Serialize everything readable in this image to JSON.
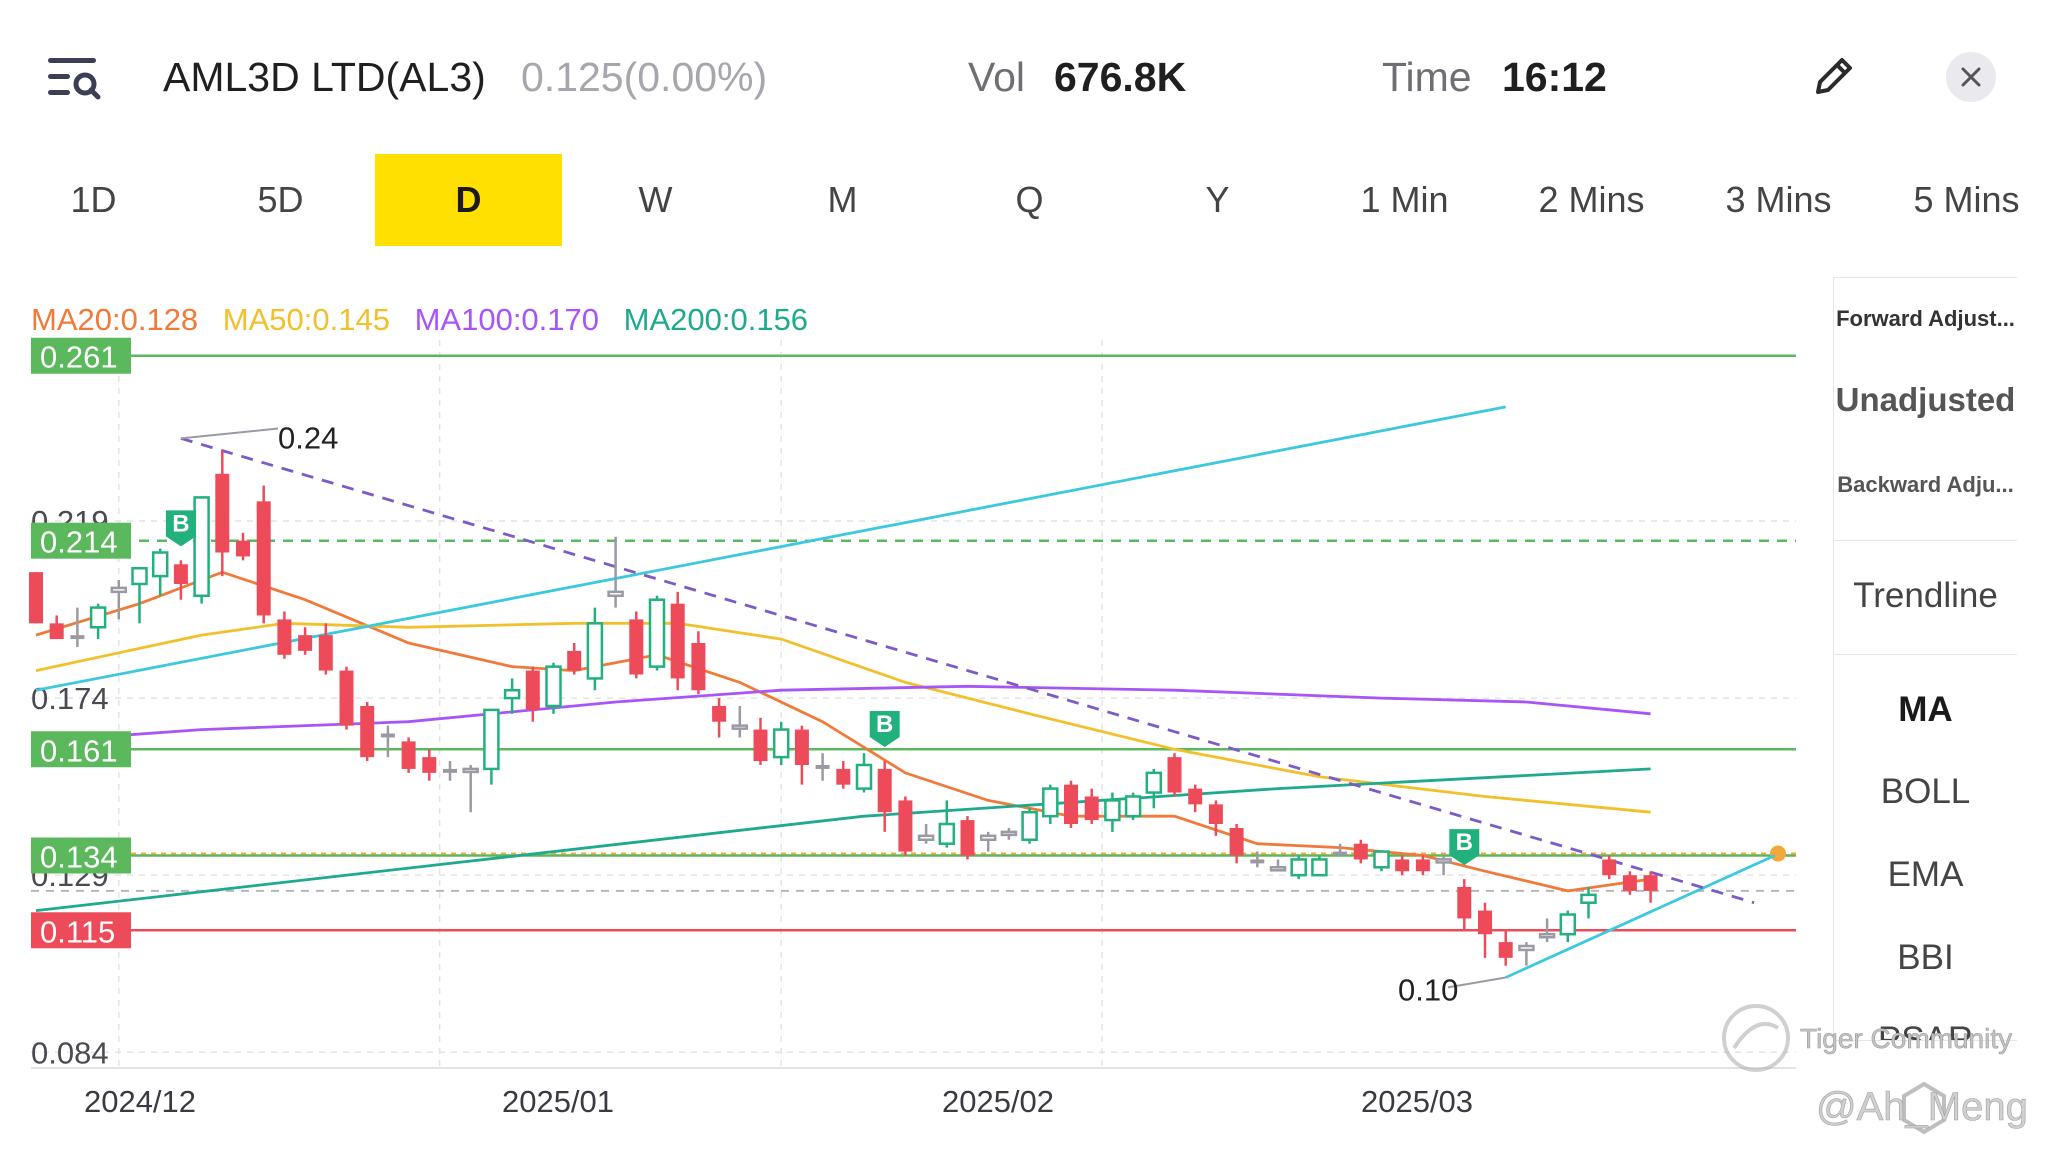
{
  "header": {
    "title": "AML3D LTD(AL3)",
    "price": "0.125(0.00%)",
    "vol_label": "Vol",
    "vol_value": "676.8K",
    "time_label": "Time",
    "time_value": "16:12"
  },
  "tabs": [
    "1D",
    "5D",
    "D",
    "W",
    "M",
    "Q",
    "Y",
    "1 Min",
    "2 Mins",
    "3 Mins",
    "5 Mins"
  ],
  "active_tab": "D",
  "ma_legend": {
    "ma20": "MA20:0.128",
    "ma50": "MA50:0.145",
    "ma100": "MA100:0.170",
    "ma200": "MA200:0.156"
  },
  "side_panel": {
    "forward": "Forward Adjust...",
    "unadjusted": "Unadjusted",
    "backward": "Backward Adju...",
    "trendline": "Trendline",
    "indicators": [
      "MA",
      "BOLL",
      "EMA",
      "BBI",
      "PSAR"
    ]
  },
  "watermark": {
    "community": "Tiger Community",
    "handle": "@Ah_Meng"
  },
  "colors": {
    "accent_tab": "#ffe000",
    "up_candle": "#22b07d",
    "down_candle": "#ee4b5a",
    "ma20": "#f07a3a",
    "ma50": "#f2c02c",
    "ma100": "#a855f7",
    "ma200": "#1fa98e",
    "support_green": "#5cb85c",
    "support_red": "#ee4b5a",
    "trendline_cyan": "#3cc8dd",
    "trendline_purple": "#7d5bc7"
  },
  "chart_data": {
    "type": "candlestick",
    "ylim": [
      0.08,
      0.265
    ],
    "y_labels": [
      "0.261",
      "0.219",
      "0.174",
      "0.129",
      "0.084"
    ],
    "x_labels": [
      "2024/12",
      "2025/01",
      "2025/02",
      "2025/03"
    ],
    "level_lines": [
      {
        "label": "0.261",
        "value": 0.261,
        "color": "#5cb85c",
        "style": "solid"
      },
      {
        "label": "0.214",
        "value": 0.214,
        "color": "#5cb85c",
        "style": "dashed"
      },
      {
        "label": "0.161",
        "value": 0.161,
        "color": "#5cb85c",
        "style": "solid"
      },
      {
        "label": "0.134",
        "value": 0.134,
        "color": "#5cb85c",
        "style": "solid"
      },
      {
        "label": "0.115",
        "value": 0.115,
        "color": "#ee4b5a",
        "style": "solid"
      }
    ],
    "annotations": [
      {
        "text": "0.24",
        "value": 0.24
      },
      {
        "text": "0.10",
        "value": 0.1
      }
    ],
    "buy_marker_label": "B",
    "candles": [
      [
        0.206,
        0.206,
        0.193,
        0.193
      ],
      [
        0.193,
        0.195,
        0.189,
        0.189
      ],
      [
        0.19,
        0.197,
        0.187,
        0.189
      ],
      [
        0.192,
        0.198,
        0.189,
        0.197
      ],
      [
        0.201,
        0.204,
        0.194,
        0.202
      ],
      [
        0.203,
        0.207,
        0.193,
        0.207
      ],
      [
        0.205,
        0.212,
        0.2,
        0.211
      ],
      [
        0.208,
        0.209,
        0.199,
        0.203
      ],
      [
        0.2,
        0.225,
        0.198,
        0.225
      ],
      [
        0.231,
        0.237,
        0.205,
        0.211
      ],
      [
        0.214,
        0.216,
        0.209,
        0.21
      ],
      [
        0.224,
        0.228,
        0.193,
        0.195
      ],
      [
        0.194,
        0.196,
        0.184,
        0.185
      ],
      [
        0.19,
        0.192,
        0.185,
        0.186
      ],
      [
        0.19,
        0.193,
        0.18,
        0.181
      ],
      [
        0.181,
        0.182,
        0.166,
        0.167
      ],
      [
        0.172,
        0.173,
        0.158,
        0.159
      ],
      [
        0.165,
        0.167,
        0.159,
        0.164
      ],
      [
        0.163,
        0.164,
        0.155,
        0.156
      ],
      [
        0.159,
        0.161,
        0.153,
        0.155
      ],
      [
        0.156,
        0.158,
        0.153,
        0.155
      ],
      [
        0.156,
        0.157,
        0.145,
        0.156
      ],
      [
        0.156,
        0.171,
        0.152,
        0.171
      ],
      [
        0.174,
        0.179,
        0.17,
        0.176
      ],
      [
        0.181,
        0.182,
        0.168,
        0.171
      ],
      [
        0.172,
        0.183,
        0.17,
        0.182
      ],
      [
        0.186,
        0.188,
        0.18,
        0.181
      ],
      [
        0.179,
        0.197,
        0.176,
        0.193
      ],
      [
        0.2,
        0.215,
        0.197,
        0.201
      ],
      [
        0.194,
        0.196,
        0.179,
        0.18
      ],
      [
        0.182,
        0.2,
        0.181,
        0.199
      ],
      [
        0.198,
        0.201,
        0.176,
        0.179
      ],
      [
        0.188,
        0.191,
        0.175,
        0.176
      ],
      [
        0.172,
        0.174,
        0.164,
        0.168
      ],
      [
        0.167,
        0.172,
        0.164,
        0.167
      ],
      [
        0.166,
        0.169,
        0.157,
        0.158
      ],
      [
        0.159,
        0.168,
        0.157,
        0.166
      ],
      [
        0.166,
        0.167,
        0.152,
        0.157
      ],
      [
        0.157,
        0.16,
        0.153,
        0.156
      ],
      [
        0.156,
        0.158,
        0.151,
        0.152
      ],
      [
        0.151,
        0.16,
        0.15,
        0.157
      ],
      [
        0.156,
        0.158,
        0.14,
        0.145
      ],
      [
        0.148,
        0.149,
        0.134,
        0.135
      ],
      [
        0.138,
        0.142,
        0.137,
        0.139
      ],
      [
        0.137,
        0.148,
        0.136,
        0.142
      ],
      [
        0.143,
        0.144,
        0.133,
        0.134
      ],
      [
        0.138,
        0.14,
        0.135,
        0.139
      ],
      [
        0.14,
        0.141,
        0.138,
        0.14
      ],
      [
        0.138,
        0.146,
        0.137,
        0.145
      ],
      [
        0.144,
        0.152,
        0.142,
        0.151
      ],
      [
        0.152,
        0.153,
        0.141,
        0.142
      ],
      [
        0.149,
        0.151,
        0.142,
        0.143
      ],
      [
        0.143,
        0.15,
        0.14,
        0.148
      ],
      [
        0.144,
        0.15,
        0.143,
        0.149
      ],
      [
        0.15,
        0.156,
        0.146,
        0.155
      ],
      [
        0.159,
        0.16,
        0.149,
        0.15
      ],
      [
        0.151,
        0.152,
        0.145,
        0.147
      ],
      [
        0.147,
        0.148,
        0.139,
        0.142
      ],
      [
        0.141,
        0.142,
        0.132,
        0.134
      ],
      [
        0.133,
        0.135,
        0.131,
        0.132
      ],
      [
        0.131,
        0.133,
        0.13,
        0.131
      ],
      [
        0.129,
        0.134,
        0.128,
        0.133
      ],
      [
        0.129,
        0.134,
        0.129,
        0.133
      ],
      [
        0.135,
        0.137,
        0.134,
        0.134
      ],
      [
        0.137,
        0.138,
        0.132,
        0.133
      ],
      [
        0.131,
        0.135,
        0.13,
        0.135
      ],
      [
        0.133,
        0.134,
        0.129,
        0.13
      ],
      [
        0.133,
        0.134,
        0.129,
        0.13
      ],
      [
        0.133,
        0.134,
        0.129,
        0.133
      ],
      [
        0.126,
        0.128,
        0.115,
        0.118
      ],
      [
        0.12,
        0.122,
        0.108,
        0.114
      ],
      [
        0.112,
        0.115,
        0.106,
        0.108
      ],
      [
        0.11,
        0.112,
        0.106,
        0.111
      ],
      [
        0.114,
        0.118,
        0.112,
        0.114
      ],
      [
        0.114,
        0.12,
        0.112,
        0.119
      ],
      [
        0.122,
        0.126,
        0.118,
        0.124
      ],
      [
        0.133,
        0.134,
        0.128,
        0.129
      ],
      [
        0.129,
        0.13,
        0.124,
        0.125
      ],
      [
        0.129,
        0.13,
        0.122,
        0.125
      ]
    ],
    "buy_markers": [
      7,
      41,
      69
    ],
    "series": [
      {
        "name": "MA20",
        "points": [
          [
            0,
            0.19
          ],
          [
            5,
            0.198
          ],
          [
            9,
            0.206
          ],
          [
            13,
            0.199
          ],
          [
            18,
            0.188
          ],
          [
            23,
            0.182
          ],
          [
            26,
            0.181
          ],
          [
            30,
            0.185
          ],
          [
            34,
            0.178
          ],
          [
            38,
            0.168
          ],
          [
            42,
            0.155
          ],
          [
            46,
            0.148
          ],
          [
            50,
            0.144
          ],
          [
            55,
            0.144
          ],
          [
            59,
            0.137
          ],
          [
            63,
            0.136
          ],
          [
            67,
            0.134
          ],
          [
            70,
            0.13
          ],
          [
            74,
            0.125
          ],
          [
            78,
            0.128
          ]
        ]
      },
      {
        "name": "MA50",
        "points": [
          [
            0,
            0.181
          ],
          [
            8,
            0.19
          ],
          [
            12,
            0.193
          ],
          [
            18,
            0.192
          ],
          [
            26,
            0.193
          ],
          [
            31,
            0.193
          ],
          [
            36,
            0.189
          ],
          [
            42,
            0.178
          ],
          [
            48,
            0.17
          ],
          [
            55,
            0.161
          ],
          [
            62,
            0.154
          ],
          [
            70,
            0.149
          ],
          [
            78,
            0.145
          ]
        ]
      },
      {
        "name": "MA100",
        "points": [
          [
            0,
            0.163
          ],
          [
            8,
            0.166
          ],
          [
            18,
            0.168
          ],
          [
            28,
            0.173
          ],
          [
            36,
            0.176
          ],
          [
            45,
            0.177
          ],
          [
            55,
            0.176
          ],
          [
            65,
            0.174
          ],
          [
            72,
            0.173
          ],
          [
            78,
            0.17
          ]
        ]
      },
      {
        "name": "MA200",
        "points": [
          [
            0,
            0.12
          ],
          [
            20,
            0.132
          ],
          [
            40,
            0.144
          ],
          [
            60,
            0.151
          ],
          [
            78,
            0.156
          ]
        ]
      }
    ],
    "trendlines": [
      {
        "color": "#3cc8dd",
        "style": "solid",
        "points": [
          [
            0,
            0.176
          ],
          [
            71,
            0.248
          ]
        ]
      },
      {
        "color": "#3cc8dd",
        "style": "solid",
        "points": [
          [
            71,
            0.103
          ],
          [
            84,
            0.134
          ]
        ]
      },
      {
        "color": "#7d5bc7",
        "style": "dashed",
        "points": [
          [
            7,
            0.24
          ],
          [
            83,
            0.122
          ]
        ]
      }
    ]
  }
}
